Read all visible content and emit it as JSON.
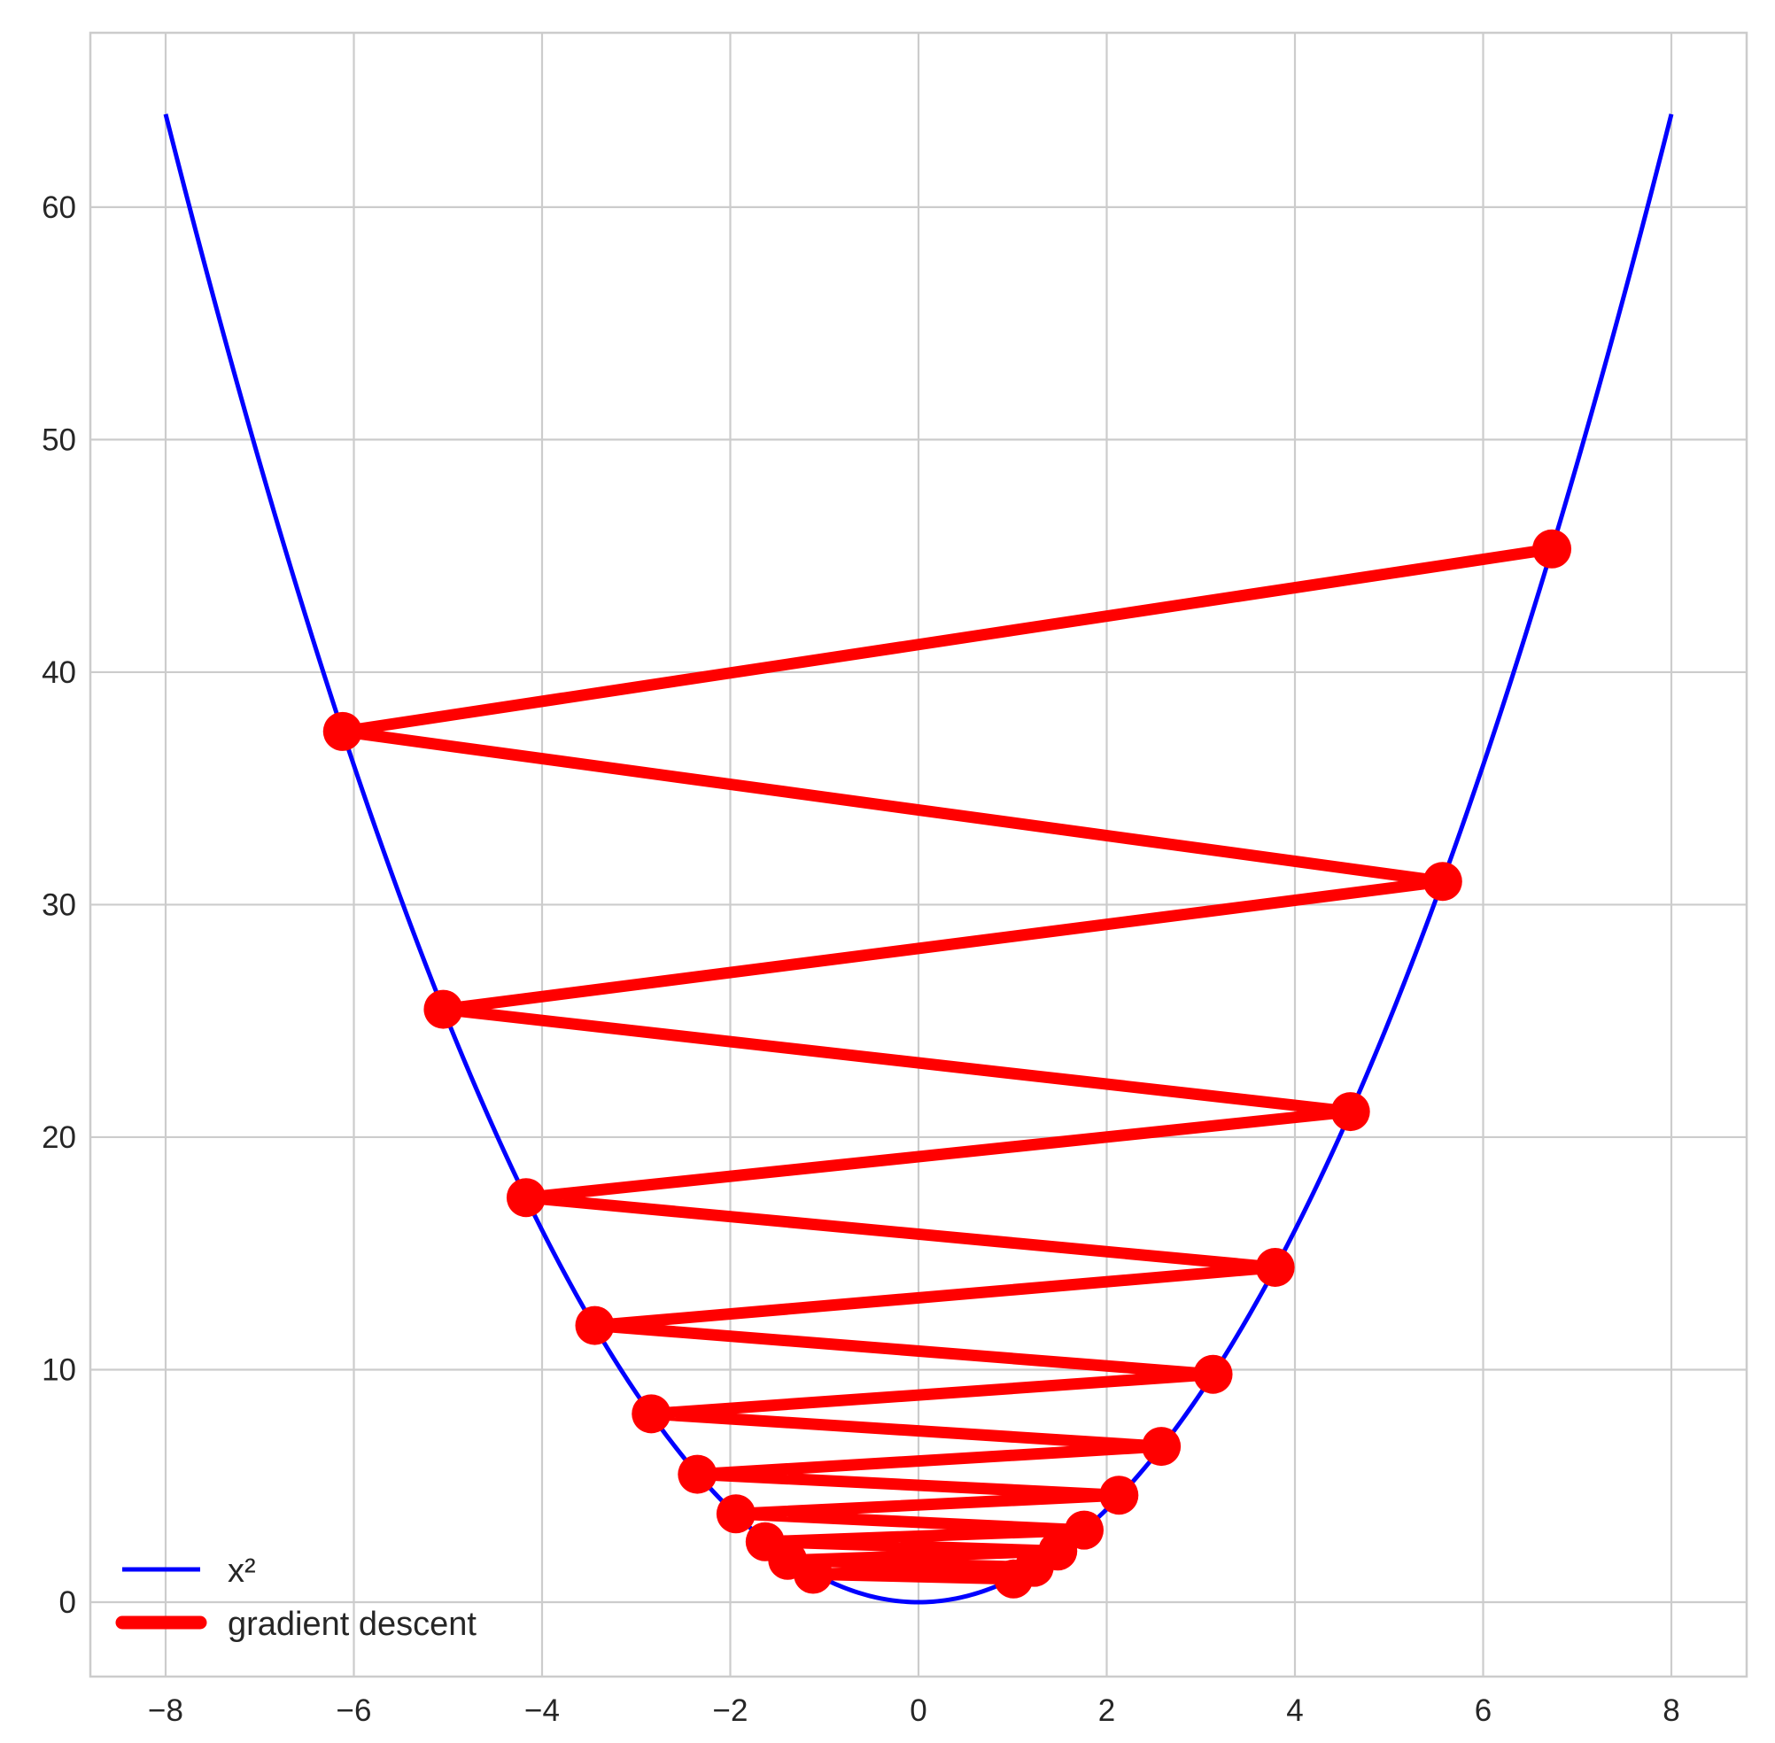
{
  "chart_data": {
    "type": "line",
    "title": "",
    "xlabel": "",
    "ylabel": "",
    "xlim": [
      -8.8,
      8.8
    ],
    "ylim": [
      -3.2,
      67.5
    ],
    "x_ticks": [
      -8,
      -6,
      -4,
      -2,
      0,
      2,
      4,
      6,
      8
    ],
    "x_tick_labels": [
      "−8",
      "−6",
      "−4",
      "−2",
      "0",
      "2",
      "4",
      "6",
      "8"
    ],
    "y_ticks": [
      0,
      10,
      20,
      30,
      40,
      50,
      60
    ],
    "y_tick_labels": [
      "0",
      "10",
      "20",
      "30",
      "40",
      "50",
      "60"
    ],
    "grid": true,
    "legend_position": "lower-left",
    "series": [
      {
        "name": "x²",
        "color": "#0000ff",
        "function": "x^2",
        "x_range": [
          -8,
          8
        ]
      },
      {
        "name": "gradient descent",
        "color": "#ff0000",
        "x": [
          6.73,
          -6.12,
          5.57,
          -5.05,
          4.59,
          -4.17,
          3.79,
          -3.44,
          3.13,
          -2.84,
          2.58,
          -2.35,
          2.13,
          -1.94,
          1.76,
          -1.63,
          1.48,
          -1.39,
          1.23,
          -1.12,
          1.01
        ],
        "y": [
          45.3,
          37.45,
          31.0,
          25.5,
          21.1,
          17.4,
          14.4,
          11.9,
          9.8,
          8.1,
          6.7,
          5.5,
          4.6,
          3.8,
          3.1,
          2.6,
          2.2,
          1.8,
          1.5,
          1.2,
          1.0
        ]
      }
    ]
  }
}
